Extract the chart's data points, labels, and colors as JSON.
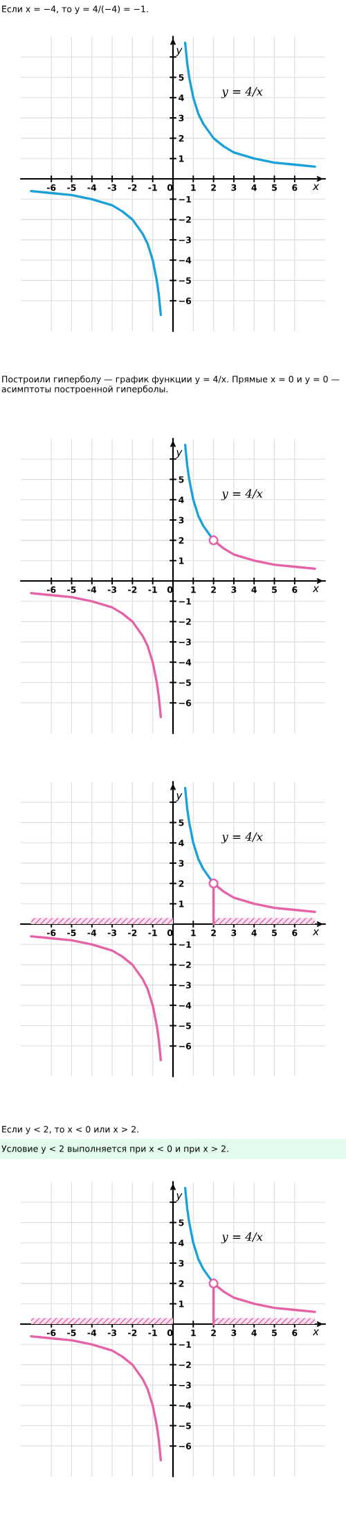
{
  "chart_data": [
    {
      "type": "line",
      "title": "Если x = −4, то y = 4/(−4) = −1.",
      "xlabel": "x",
      "ylabel": "y",
      "annotations": [
        "y = 4/x"
      ],
      "xlim": [
        -7.5,
        7.5
      ],
      "ylim": [
        -7.5,
        7
      ],
      "grid": true,
      "xticks": [
        {
          "value": -6,
          "label": "-6"
        },
        {
          "value": -5,
          "label": "-5"
        },
        {
          "value": -4,
          "label": "-4"
        },
        {
          "value": -3,
          "label": "-3"
        },
        {
          "value": -2,
          "label": "-2"
        },
        {
          "value": -1,
          "label": "-1"
        },
        {
          "value": 0,
          "label": "0"
        },
        1,
        2,
        3,
        4,
        5,
        6
      ],
      "yticks": [
        {
          "value": -6,
          "label": "−6"
        },
        {
          "value": -5,
          "label": "−5"
        },
        {
          "value": -4,
          "label": "−4"
        },
        {
          "value": -3,
          "label": "−3"
        },
        {
          "value": -2,
          "label": "−2"
        },
        {
          "value": -1,
          "label": "−1"
        },
        1,
        2,
        3,
        4,
        5,
        {
          "value": 6,
          "label": null
        }
      ],
      "series": [
        {
          "color": "#1ba0d8",
          "x": [
            0.6,
            0.7,
            0.8,
            1,
            1.25,
            1.5,
            2,
            2.5,
            3,
            4,
            5,
            6,
            7
          ],
          "values": [
            6.7,
            5.7,
            5,
            4,
            3.2,
            2.7,
            2,
            1.6,
            1.3,
            1,
            0.8,
            0.7,
            0.6
          ]
        },
        {
          "color": "#1ba0d8",
          "x": [
            -7,
            -6,
            -5,
            -4,
            -3,
            -2.5,
            -2,
            -1.5,
            -1.25,
            -1,
            -0.8,
            -0.7,
            -0.6
          ],
          "values": [
            -0.6,
            -0.7,
            -0.8,
            -1,
            -1.3,
            -1.6,
            -2,
            -2.7,
            -3.2,
            -4,
            -5,
            -5.7,
            -6.7
          ]
        }
      ]
    },
    {
      "type": "line",
      "title": "Построили гиперболу — график функции y = 4/x. Прямые x = 0 и y = 0 — асимптоты построенной гиперболы.",
      "xlabel": "x",
      "ylabel": "y",
      "annotations": [
        "y = 4/x"
      ],
      "xlim": [
        -7.5,
        7.5
      ],
      "ylim": [
        -7.5,
        7
      ],
      "grid": true,
      "xticks": [
        {
          "value": -6,
          "label": "-6"
        },
        {
          "value": -5,
          "label": "-5"
        },
        {
          "value": -4,
          "label": "-4"
        },
        {
          "value": -3,
          "label": "-3"
        },
        {
          "value": -2,
          "label": "-2"
        },
        {
          "value": -1,
          "label": "-1"
        },
        {
          "value": 0,
          "label": "0"
        },
        1,
        2,
        3,
        4,
        5,
        6
      ],
      "yticks": [
        {
          "value": -6,
          "label": "−6"
        },
        {
          "value": -5,
          "label": "−5"
        },
        {
          "value": -4,
          "label": "−4"
        },
        {
          "value": -3,
          "label": "−3"
        },
        {
          "value": -2,
          "label": "−2"
        },
        {
          "value": -1,
          "label": "−1"
        },
        1,
        2,
        3,
        4,
        5,
        {
          "value": 6,
          "label": null
        }
      ],
      "series": [
        {
          "color": "#1ba0d8",
          "x": [
            0.6,
            0.7,
            0.8,
            1,
            1.25,
            1.5,
            2
          ],
          "values": [
            6.7,
            5.7,
            5,
            4,
            3.2,
            2.7,
            2
          ]
        },
        {
          "color": "#e462a6",
          "x": [
            2,
            2.5,
            3,
            4,
            5,
            6,
            7
          ],
          "values": [
            2,
            1.6,
            1.3,
            1,
            0.8,
            0.7,
            0.6
          ]
        },
        {
          "color": "#e462a6",
          "x": [
            -7,
            -6,
            -5,
            -4,
            -3,
            -2.5,
            -2,
            -1.5,
            -1.25,
            -1,
            -0.8,
            -0.7,
            -0.6
          ],
          "values": [
            -0.6,
            -0.7,
            -0.8,
            -1,
            -1.3,
            -1.6,
            -2,
            -2.7,
            -3.2,
            -4,
            -5,
            -5.7,
            -6.7
          ]
        },
        {
          "type": "scatter",
          "marker": "circle",
          "color": "#e462a6",
          "x": [
            2
          ],
          "values": [
            2
          ]
        }
      ]
    },
    {
      "type": "line",
      "xlabel": "x",
      "ylabel": "y",
      "annotations": [
        "y = 4/x"
      ],
      "xlim": [
        -7.5,
        7.5
      ],
      "ylim": [
        -7.5,
        7
      ],
      "grid": true,
      "xticks": [
        {
          "value": -6,
          "label": "-6"
        },
        {
          "value": -5,
          "label": "-5"
        },
        {
          "value": -4,
          "label": "-4"
        },
        {
          "value": -3,
          "label": "-3"
        },
        {
          "value": -2,
          "label": "-2"
        },
        {
          "value": -1,
          "label": "-1"
        },
        {
          "value": 0,
          "label": "0"
        },
        1,
        2,
        3,
        4,
        5,
        6
      ],
      "yticks": [
        {
          "value": -6,
          "label": "−6"
        },
        {
          "value": -5,
          "label": "−5"
        },
        {
          "value": -4,
          "label": "−4"
        },
        {
          "value": -3,
          "label": "−3"
        },
        {
          "value": -2,
          "label": "−2"
        },
        {
          "value": -1,
          "label": "−1"
        },
        1,
        2,
        3,
        4,
        5,
        {
          "value": 6,
          "label": null
        }
      ],
      "series": [
        {
          "type": "area",
          "color": "#e462a6",
          "x": [
            -7,
            0
          ],
          "values": [
            0.3,
            0.3
          ]
        },
        {
          "type": "area",
          "color": "#e462a6",
          "x": [
            2,
            7
          ],
          "values": [
            0.3,
            0.3
          ]
        },
        {
          "color": "#1ba0d8",
          "x": [
            0.6,
            0.7,
            0.8,
            1,
            1.25,
            1.5,
            2
          ],
          "values": [
            6.7,
            5.7,
            5,
            4,
            3.2,
            2.7,
            2
          ]
        },
        {
          "color": "#e462a6",
          "x": [
            2,
            2.5,
            3,
            4,
            5,
            6,
            7
          ],
          "values": [
            2,
            1.6,
            1.3,
            1,
            0.8,
            0.7,
            0.6
          ]
        },
        {
          "color": "#e462a6",
          "x": [
            -7,
            -6,
            -5,
            -4,
            -3,
            -2.5,
            -2,
            -1.5,
            -1.25,
            -1,
            -0.8,
            -0.7,
            -0.6
          ],
          "values": [
            -0.6,
            -0.7,
            -0.8,
            -1,
            -1.3,
            -1.6,
            -2,
            -2.7,
            -3.2,
            -4,
            -5,
            -5.7,
            -6.7
          ]
        },
        {
          "color": "#e462a6",
          "x": [
            2,
            2
          ],
          "values": [
            0,
            2
          ]
        },
        {
          "type": "scatter",
          "marker": "circle",
          "color": "#e462a6",
          "x": [
            2
          ],
          "values": [
            2
          ]
        }
      ]
    },
    {
      "type": "line",
      "title": "Если y < 2, то x < 0 или x > 2.",
      "subtitle": "Условие y < 2 выполняется при x < 0 и при x > 2.",
      "xlabel": "x",
      "ylabel": "y",
      "annotations": [
        "y = 4/x"
      ],
      "xlim": [
        -7.5,
        7.5
      ],
      "ylim": [
        -7.5,
        7
      ],
      "grid": true,
      "xticks": [
        {
          "value": -6,
          "label": "-6"
        },
        {
          "value": -5,
          "label": "-5"
        },
        {
          "value": -4,
          "label": "-4"
        },
        {
          "value": -3,
          "label": "-3"
        },
        {
          "value": -2,
          "label": "-2"
        },
        {
          "value": -1,
          "label": "-1"
        },
        {
          "value": 0,
          "label": "0"
        },
        1,
        2,
        3,
        4,
        5,
        6
      ],
      "yticks": [
        {
          "value": -6,
          "label": "−6"
        },
        {
          "value": -5,
          "label": "−5"
        },
        {
          "value": -4,
          "label": "−4"
        },
        {
          "value": -3,
          "label": "−3"
        },
        {
          "value": -2,
          "label": "−2"
        },
        {
          "value": -1,
          "label": "−1"
        },
        1,
        2,
        3,
        4,
        5,
        {
          "value": 6,
          "label": null
        }
      ],
      "series": [
        {
          "type": "area",
          "color": "#e462a6",
          "x": [
            -7,
            0
          ],
          "values": [
            0.3,
            0.3
          ]
        },
        {
          "type": "area",
          "color": "#e462a6",
          "x": [
            2,
            7
          ],
          "values": [
            0.3,
            0.3
          ]
        },
        {
          "color": "#1ba0d8",
          "x": [
            0.6,
            0.7,
            0.8,
            1,
            1.25,
            1.5,
            2
          ],
          "values": [
            6.7,
            5.7,
            5,
            4,
            3.2,
            2.7,
            2
          ]
        },
        {
          "color": "#e462a6",
          "x": [
            2,
            2.5,
            3,
            4,
            5,
            6,
            7
          ],
          "values": [
            2,
            1.6,
            1.3,
            1,
            0.8,
            0.7,
            0.6
          ]
        },
        {
          "color": "#e462a6",
          "x": [
            -7,
            -6,
            -5,
            -4,
            -3,
            -2.5,
            -2,
            -1.5,
            -1.25,
            -1,
            -0.8,
            -0.7,
            -0.6
          ],
          "values": [
            -0.6,
            -0.7,
            -0.8,
            -1,
            -1.3,
            -1.6,
            -2,
            -2.7,
            -3.2,
            -4,
            -5,
            -5.7,
            -6.7
          ]
        },
        {
          "color": "#e462a6",
          "x": [
            2,
            2
          ],
          "values": [
            0,
            2
          ]
        },
        {
          "type": "scatter",
          "marker": "circle",
          "color": "#e462a6",
          "x": [
            2
          ],
          "values": [
            2
          ]
        }
      ]
    }
  ]
}
